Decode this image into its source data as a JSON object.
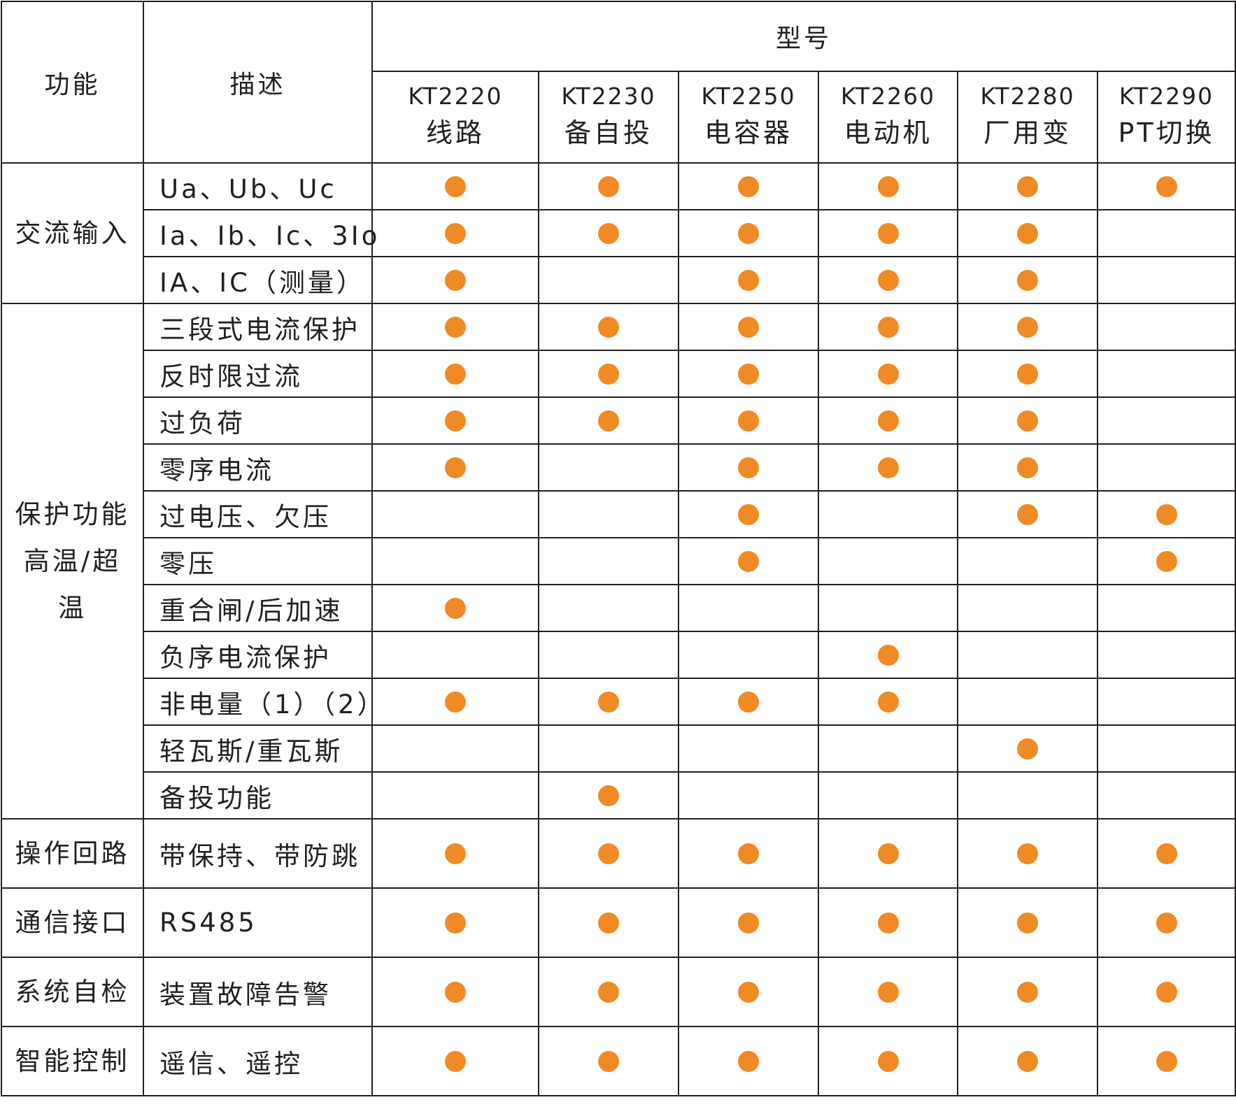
{
  "colors": {
    "dot": "#ef8a25",
    "border": "#231f20"
  },
  "header": {
    "function_label": "功能",
    "description_label": "描述",
    "model_label": "型号",
    "models": [
      {
        "code": "KT2220",
        "type": "线路"
      },
      {
        "code": "KT2230",
        "type": "备自投"
      },
      {
        "code": "KT2250",
        "type": "电容器"
      },
      {
        "code": "KT2260",
        "type": "电动机"
      },
      {
        "code": "KT2280",
        "type": "厂用变"
      },
      {
        "code": "KT2290",
        "type": "PT切换"
      }
    ]
  },
  "groups": [
    {
      "name": "交流输入",
      "rows": [
        {
          "desc": "Ua、Ub、Uc",
          "marks": [
            true,
            true,
            true,
            true,
            true,
            true
          ]
        },
        {
          "desc": "Ia、Ib、Ic、3Io",
          "marks": [
            true,
            true,
            true,
            true,
            true,
            false
          ]
        },
        {
          "desc": "IA、IC（测量）",
          "marks": [
            true,
            false,
            true,
            true,
            true,
            false
          ]
        }
      ]
    },
    {
      "name": "保护功能\n高温/超\n温",
      "rows": [
        {
          "desc": "三段式电流保护",
          "marks": [
            true,
            true,
            true,
            true,
            true,
            false
          ]
        },
        {
          "desc": "反时限过流",
          "marks": [
            true,
            true,
            true,
            true,
            true,
            false
          ]
        },
        {
          "desc": "过负荷",
          "marks": [
            true,
            true,
            true,
            true,
            true,
            false
          ]
        },
        {
          "desc": "零序电流",
          "marks": [
            true,
            false,
            true,
            true,
            true,
            false
          ]
        },
        {
          "desc": "过电压、欠压",
          "marks": [
            false,
            false,
            true,
            false,
            true,
            true
          ]
        },
        {
          "desc": "零压",
          "marks": [
            false,
            false,
            true,
            false,
            false,
            true
          ]
        },
        {
          "desc": "重合闸/后加速",
          "marks": [
            true,
            false,
            false,
            false,
            false,
            false
          ]
        },
        {
          "desc": "负序电流保护",
          "marks": [
            false,
            false,
            false,
            true,
            false,
            false
          ]
        },
        {
          "desc": "非电量（1）（2）",
          "marks": [
            true,
            true,
            true,
            true,
            false,
            false
          ]
        },
        {
          "desc": "轻瓦斯/重瓦斯",
          "marks": [
            false,
            false,
            false,
            false,
            true,
            false
          ]
        },
        {
          "desc": "备投功能",
          "marks": [
            false,
            true,
            false,
            false,
            false,
            false
          ]
        }
      ]
    },
    {
      "name": "操作回路",
      "rows": [
        {
          "desc": "带保持、带防跳",
          "marks": [
            true,
            true,
            true,
            true,
            true,
            true
          ]
        }
      ]
    },
    {
      "name": "通信接口",
      "rows": [
        {
          "desc": "RS485",
          "marks": [
            true,
            true,
            true,
            true,
            true,
            true
          ]
        }
      ]
    },
    {
      "name": "系统自检",
      "rows": [
        {
          "desc": "装置故障告警",
          "marks": [
            true,
            true,
            true,
            true,
            true,
            true
          ]
        }
      ]
    },
    {
      "name": "智能控制",
      "rows": [
        {
          "desc": "遥信、遥控",
          "marks": [
            true,
            true,
            true,
            true,
            true,
            true
          ]
        }
      ]
    }
  ]
}
